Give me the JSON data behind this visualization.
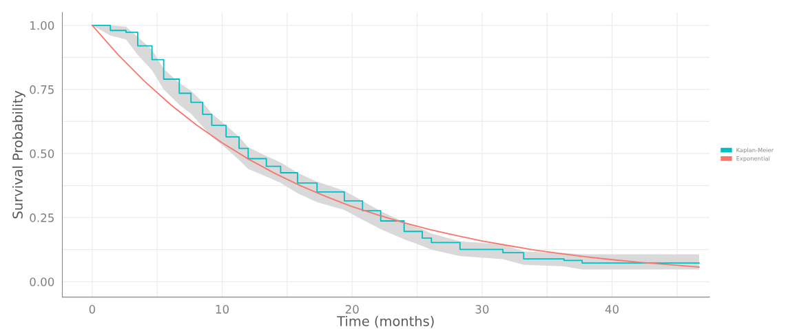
{
  "chart_data": {
    "type": "line",
    "xlabel": "Time (months)",
    "ylabel": "Survival Probability",
    "xlim": [
      -2.3,
      47.5
    ],
    "ylim": [
      -0.06,
      1.05
    ],
    "xticks": [
      0,
      {
        "value": 5,
        "label": null
      },
      10,
      {
        "value": 15,
        "label": null
      },
      20,
      {
        "value": 25,
        "label": null
      },
      30,
      {
        "value": 35,
        "label": null
      },
      40,
      {
        "value": 45,
        "label": null
      }
    ],
    "yticks": [
      {
        "value": 0,
        "label": "0.00"
      },
      {
        "value": 0.125,
        "label": null
      },
      {
        "value": 0.25,
        "label": "0.25"
      },
      {
        "value": 0.375,
        "label": null
      },
      {
        "value": 0.5,
        "label": "0.50"
      },
      {
        "value": 0.625,
        "label": null
      },
      {
        "value": 0.75,
        "label": "0.75"
      },
      {
        "value": 0.875,
        "label": null
      },
      {
        "value": 1,
        "label": "1.00"
      }
    ],
    "grid": true,
    "legend": "right",
    "series": [
      {
        "name": "Kaplan-Meier",
        "color": "#00bfc4",
        "type": "step",
        "x": [
          0,
          1.4,
          2.6,
          3.5,
          4.6,
          5.5,
          6.7,
          7.6,
          8.5,
          9.2,
          10.3,
          11.3,
          12.0,
          13.4,
          14.5,
          15.8,
          17.3,
          19.4,
          20.8,
          22.2,
          24.0,
          25.4,
          26.1,
          28.3,
          31.6,
          33.2,
          36.3,
          37.7,
          46.7
        ],
        "values": [
          1.0,
          0.98,
          0.973,
          0.92,
          0.866,
          0.79,
          0.735,
          0.7,
          0.653,
          0.61,
          0.565,
          0.52,
          0.48,
          0.45,
          0.425,
          0.385,
          0.35,
          0.315,
          0.277,
          0.237,
          0.196,
          0.17,
          0.153,
          0.126,
          0.113,
          0.089,
          0.083,
          0.073,
          0.073
        ],
        "lower": [
          1.0,
          0.96,
          0.945,
          0.885,
          0.825,
          0.75,
          0.69,
          0.655,
          0.605,
          0.565,
          0.52,
          0.475,
          0.44,
          0.41,
          0.385,
          0.345,
          0.31,
          0.28,
          0.242,
          0.205,
          0.165,
          0.14,
          0.125,
          0.1,
          0.088,
          0.066,
          0.06,
          0.048,
          0.048
        ],
        "upper": [
          1.0,
          1.0,
          0.995,
          0.955,
          0.905,
          0.83,
          0.775,
          0.745,
          0.7,
          0.655,
          0.61,
          0.565,
          0.525,
          0.49,
          0.465,
          0.425,
          0.39,
          0.355,
          0.315,
          0.275,
          0.232,
          0.205,
          0.188,
          0.158,
          0.145,
          0.118,
          0.112,
          0.107,
          0.107
        ]
      },
      {
        "name": "Exponential",
        "color": "#f8766d",
        "x": [
          0,
          2,
          4,
          6,
          8,
          10,
          12,
          14,
          16,
          18,
          20,
          22,
          24,
          26,
          28,
          30,
          32,
          34,
          36,
          38,
          40,
          42,
          44,
          46.7
        ],
        "values": [
          1.0,
          0.885,
          0.783,
          0.692,
          0.612,
          0.542,
          0.479,
          0.424,
          0.375,
          0.332,
          0.293,
          0.26,
          0.23,
          0.203,
          0.18,
          0.159,
          0.141,
          0.124,
          0.11,
          0.097,
          0.086,
          0.076,
          0.068,
          0.057
        ]
      }
    ]
  }
}
